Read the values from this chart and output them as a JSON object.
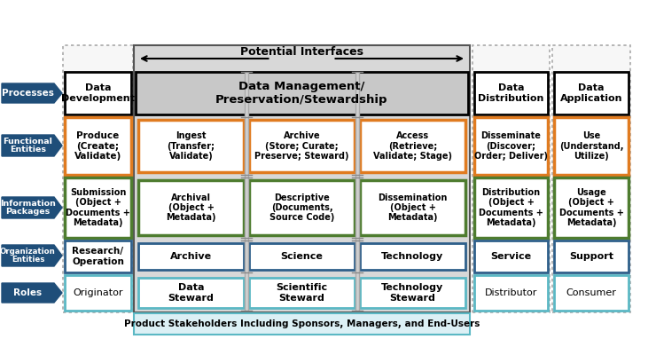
{
  "title": "Potential Interfaces",
  "bottom_label": "Product Stakeholders Including Sponsors, Managers, and End-Users",
  "dark_blue": "#1F4E79",
  "orange_border": "#E07B20",
  "green_border": "#4E7C2F",
  "navy_border": "#2E5F8A",
  "cyan_border": "#5BB8C4",
  "header_gray": "#BBBBBB",
  "inner_gray": "#D8D8D8",
  "col_bg": "#E8E8E8",
  "white": "#FFFFFF",
  "black": "#000000",
  "bg": "#FFFFFF",
  "dotted_col_color": "#AAAAAA",
  "row_labels": [
    "Processes",
    "Functional\nEntities",
    "Information\nPackages",
    "Organization\nEntities",
    "Roles"
  ],
  "col1_header": "Data\nDevelopment",
  "col2_header": "Data Management/\nPreservation/Stewardship",
  "col3_header": "Data\nDistribution",
  "col4_header": "Data\nApplication",
  "func_col1": "Produce\n(Create;\nValidate)",
  "func_inner": [
    "Ingest\n(Transfer;\nValidate)",
    "Archive\n(Store; Curate;\nPreserve; Steward)",
    "Access\n(Retrieve;\nValidate; Stage)"
  ],
  "func_col3": "Disseminate\n(Discover;\nOrder; Deliver)",
  "func_col4": "Use\n(Understand,\nUtilize)",
  "info_col1": "Submission\n(Object +\nDocuments +\nMetadata)",
  "info_inner": [
    "Archival\n(Object +\nMetadata)",
    "Descriptive\n(Documents,\nSource Code)",
    "Dissemination\n(Object +\nMetadata)"
  ],
  "info_col3": "Distribution\n(Object +\nDocuments +\nMetadata)",
  "info_col4": "Usage\n(Object +\nDocuments +\nMetadata)",
  "org_col1": "Research/\nOperation",
  "org_inner": [
    "Archive",
    "Science",
    "Technology"
  ],
  "org_col3": "Service",
  "org_col4": "Support",
  "roles_col1": "Originator",
  "roles_inner": [
    "Data\nSteward",
    "Scientific\nSteward",
    "Technology\nSteward"
  ],
  "roles_col3": "Distributor",
  "roles_col4": "Consumer"
}
